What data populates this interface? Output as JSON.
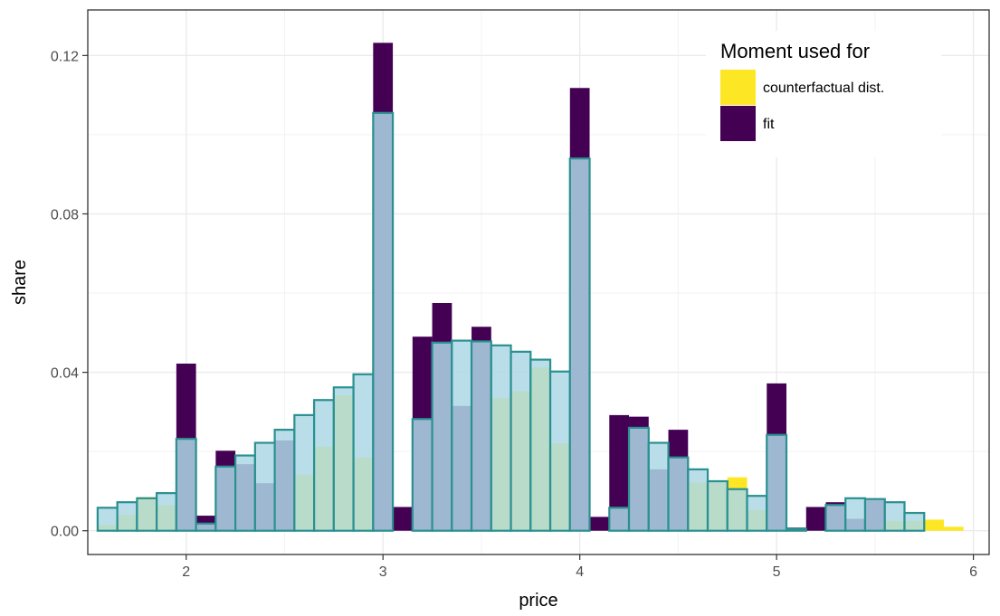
{
  "chart_data": {
    "type": "bar",
    "xlabel": "price",
    "ylabel": "share",
    "xlim": [
      1.5,
      6.08
    ],
    "ylim": [
      -0.006,
      0.1315
    ],
    "x_ticks": [
      2,
      3,
      4,
      5,
      6
    ],
    "y_ticks": [
      0.0,
      0.04,
      0.08,
      0.12
    ],
    "y_tick_labels": [
      "0.00",
      "0.04",
      "0.08",
      "0.12"
    ],
    "bin_width": 0.1,
    "grid": true,
    "legend": {
      "title": "Moment used for",
      "placement": "top-right",
      "entries": [
        {
          "label": "counterfactual dist.",
          "color": "#FDE725"
        },
        {
          "label": "fit",
          "color": "#440154"
        }
      ]
    },
    "series": [
      {
        "name": "counterfactual dist.",
        "color": "#FDE725",
        "x": [
          1.6,
          1.7,
          1.8,
          1.9,
          2.6,
          2.7,
          2.8,
          2.9,
          3.6,
          3.7,
          3.8,
          3.9,
          4.6,
          4.7,
          4.8,
          4.9,
          5.6,
          5.7,
          5.8,
          5.9
        ],
        "values": [
          0.0015,
          0.004,
          0.0085,
          0.0065,
          0.0142,
          0.0212,
          0.0342,
          0.0185,
          0.0335,
          0.0352,
          0.0412,
          0.022,
          0.0122,
          0.0125,
          0.0135,
          0.0052,
          0.0025,
          0.0025,
          0.0028,
          0.001
        ]
      },
      {
        "name": "fit",
        "color": "#440154",
        "x": [
          2.0,
          2.1,
          2.2,
          2.3,
          2.4,
          2.5,
          3.0,
          3.1,
          3.2,
          3.3,
          3.4,
          3.5,
          4.0,
          4.1,
          4.2,
          4.3,
          4.4,
          4.5,
          5.0,
          5.1,
          5.2,
          5.3,
          5.4,
          5.5
        ],
        "values": [
          0.0422,
          0.0038,
          0.0202,
          0.0168,
          0.012,
          0.0228,
          0.1232,
          0.006,
          0.049,
          0.0575,
          0.0315,
          0.0515,
          0.1118,
          0.0035,
          0.0292,
          0.0288,
          0.0155,
          0.0255,
          0.0372,
          0.0008,
          0.006,
          0.0072,
          0.003,
          0.0078
        ]
      },
      {
        "name": "",
        "fill": "#ADD8E6",
        "stroke": "#2A9090",
        "x": [
          1.6,
          1.7,
          1.8,
          1.9,
          2.0,
          2.1,
          2.2,
          2.3,
          2.4,
          2.5,
          2.6,
          2.7,
          2.8,
          2.9,
          3.0,
          3.1,
          3.2,
          3.3,
          3.4,
          3.5,
          3.6,
          3.7,
          3.8,
          3.9,
          4.0,
          4.1,
          4.2,
          4.3,
          4.4,
          4.5,
          4.6,
          4.7,
          4.8,
          4.9,
          5.0,
          5.1,
          5.2,
          5.3,
          5.4,
          5.5,
          5.6,
          5.7
        ],
        "values": [
          0.0058,
          0.0072,
          0.0082,
          0.0095,
          0.0232,
          0.0018,
          0.0162,
          0.019,
          0.0222,
          0.0255,
          0.0292,
          0.033,
          0.0362,
          0.0395,
          0.1055,
          0.0,
          0.0282,
          0.0475,
          0.048,
          0.0478,
          0.0468,
          0.0452,
          0.0432,
          0.0402,
          0.094,
          0.0,
          0.0058,
          0.026,
          0.0222,
          0.0185,
          0.0155,
          0.0125,
          0.0105,
          0.0088,
          0.0242,
          0.0005,
          0.0,
          0.0065,
          0.0082,
          0.008,
          0.0072,
          0.0045
        ]
      }
    ]
  }
}
